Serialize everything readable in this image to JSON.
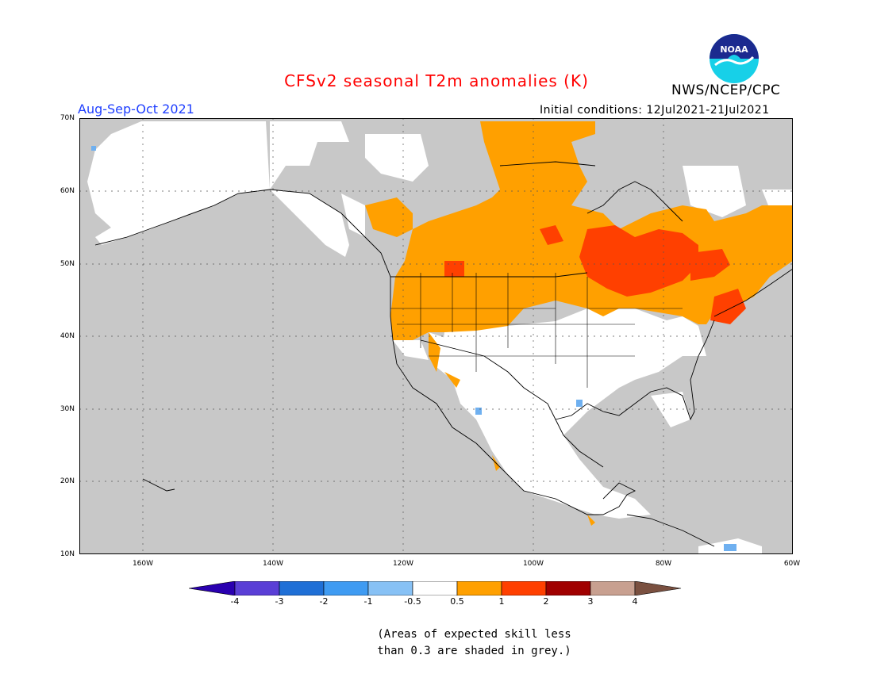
{
  "title": "CFSv2 seasonal T2m anomalies (K)",
  "agency": "NWS/NCEP/CPC",
  "logo_text": "NOAA",
  "period": "Aug-Sep-Oct 2021",
  "initial_conditions": "Initial conditions: 12Jul2021-21Jul2021",
  "latitude_labels": [
    "70N",
    "60N",
    "50N",
    "40N",
    "30N",
    "20N",
    "10N"
  ],
  "longitude_labels": [
    "160W",
    "140W",
    "120W",
    "100W",
    "80W",
    "60W"
  ],
  "colorbar": {
    "labels": [
      "-4",
      "-3",
      "-2",
      "-1",
      "-0.5",
      "0.5",
      "1",
      "2",
      "3",
      "4"
    ],
    "colors": [
      "#2a00b0",
      "#5a3fd6",
      "#1f6fd6",
      "#3f9bf2",
      "#87c1f5",
      "#ffffff",
      "#ffa000",
      "#ff4000",
      "#a00000",
      "#c8a090",
      "#7a5040"
    ]
  },
  "note_line1": "(Areas of expected skill less",
  "note_line2": "than 0.3 are shaded in grey.)",
  "legend_colors": {
    "low_skill_grey": "#c8c8c8",
    "anomaly_0_5_to_1": "#ffa000",
    "anomaly_1_to_2": "#ff4000",
    "anomaly_neg_0_5_to_neg_1": "#87c1f5",
    "neutral": "#ffffff"
  }
}
